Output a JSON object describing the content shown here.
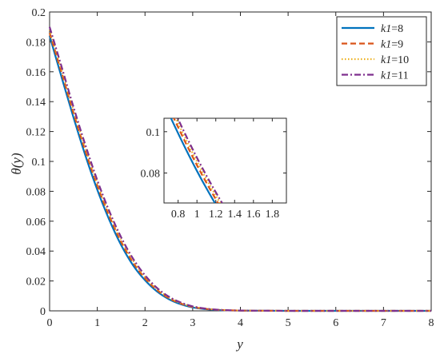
{
  "chart_data": {
    "type": "line",
    "xlabel": "y",
    "ylabel": "θ(y)",
    "xlim": [
      0,
      8
    ],
    "ylim": [
      0,
      0.2
    ],
    "xticks": [
      "0",
      "1",
      "2",
      "3",
      "4",
      "5",
      "6",
      "7",
      "8"
    ],
    "yticks": [
      "0",
      "0.02",
      "0.04",
      "0.06",
      "0.08",
      "0.1",
      "0.12",
      "0.14",
      "0.16",
      "0.18",
      "0.2"
    ],
    "legend_position": "top-right",
    "x": [
      0,
      0.25,
      0.5,
      0.75,
      1,
      1.25,
      1.5,
      1.75,
      2,
      2.25,
      2.5,
      2.75,
      3,
      3.25,
      3.5,
      3.75,
      4,
      4.25,
      4.5,
      5,
      5.5,
      6,
      7,
      8
    ],
    "series": [
      {
        "name": "k1=8",
        "legend_label": {
          "var": "k1",
          "eq": "=8"
        },
        "color": "#0072BD",
        "dash": "solid",
        "values": [
          0.184,
          0.1565,
          0.1295,
          0.104,
          0.081,
          0.061,
          0.044,
          0.0305,
          0.0205,
          0.013,
          0.0078,
          0.0044,
          0.0023,
          0.0012,
          0.0006,
          0.0003,
          0.0002,
          0.0001,
          0.0001,
          0,
          0,
          0,
          0,
          0
        ]
      },
      {
        "name": "k1=9",
        "legend_label": {
          "var": "k1",
          "eq": "=9"
        },
        "color": "#D95319",
        "dash": "dashed",
        "values": [
          0.186,
          0.1595,
          0.1325,
          0.107,
          0.0838,
          0.0635,
          0.0462,
          0.0323,
          0.0218,
          0.014,
          0.0085,
          0.0049,
          0.0026,
          0.0014,
          0.0007,
          0.0004,
          0.0002,
          0.0001,
          0.0001,
          0,
          0,
          0,
          0,
          0
        ]
      },
      {
        "name": "k1=10",
        "legend_label": {
          "var": "k1",
          "eq": "=10"
        },
        "color": "#EDB120",
        "dash": "dotted",
        "values": [
          0.188,
          0.1615,
          0.1345,
          0.109,
          0.0856,
          0.0652,
          0.0477,
          0.0336,
          0.0228,
          0.0147,
          0.009,
          0.0052,
          0.0028,
          0.0015,
          0.0008,
          0.0004,
          0.0002,
          0.0001,
          0.0001,
          0,
          0,
          0,
          0,
          0
        ]
      },
      {
        "name": "k1=11",
        "legend_label": {
          "var": "k1",
          "eq": "=11"
        },
        "color": "#7E2F8E",
        "dash": "dashdot",
        "values": [
          0.19,
          0.1635,
          0.1365,
          0.111,
          0.0874,
          0.0668,
          0.0492,
          0.0349,
          0.0238,
          0.0154,
          0.0095,
          0.0056,
          0.003,
          0.0016,
          0.0008,
          0.0004,
          0.0002,
          0.0001,
          0.0001,
          0,
          0,
          0,
          0,
          0
        ]
      }
    ],
    "inset": {
      "xlim": [
        0.65,
        1.95
      ],
      "ylim": [
        0.0655,
        0.1065
      ],
      "xticks": [
        "0.8",
        "1",
        "1.2",
        "1.4",
        "1.6",
        "1.8"
      ],
      "yticks": [
        "0.08",
        "0.1"
      ]
    }
  }
}
